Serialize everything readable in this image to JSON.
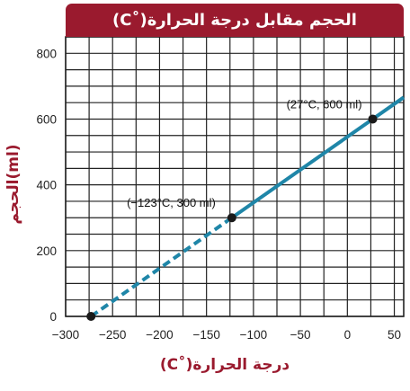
{
  "chart_data": {
    "type": "line",
    "title": "الحجم مقابل درجة الحرارة(˚C)",
    "xlabel": "درجة الحرارة(˚C)",
    "ylabel": "الحجم(ml)",
    "xlim": [
      -300,
      60
    ],
    "ylim": [
      0,
      850
    ],
    "xticks": [
      -300,
      -250,
      -200,
      -150,
      -100,
      -50,
      0,
      50
    ],
    "xtick_labels": [
      "−300",
      "−250",
      "−200",
      "−150",
      "−100",
      "−50",
      "0",
      "50"
    ],
    "yticks": [
      0,
      200,
      400,
      600,
      800
    ],
    "grid": true,
    "series": [
      {
        "style": "dashed",
        "x": [
          -273,
          -123
        ],
        "y": [
          0,
          300
        ]
      },
      {
        "style": "solid",
        "x": [
          -123,
          27,
          60
        ],
        "y": [
          300,
          600,
          666
        ]
      }
    ],
    "points": [
      {
        "x": -273,
        "y": 0,
        "label": ""
      },
      {
        "x": -123,
        "y": 300,
        "label": "(−123°C, 300 ml)"
      },
      {
        "x": 27,
        "y": 600,
        "label": "(27°C, 600 ml)"
      }
    ],
    "colors": {
      "line": "#1f86a8",
      "title_bg": "#9a1a2e",
      "label": "#9a1a2e",
      "grid": "#222222",
      "point": "#1a1a1a"
    }
  }
}
